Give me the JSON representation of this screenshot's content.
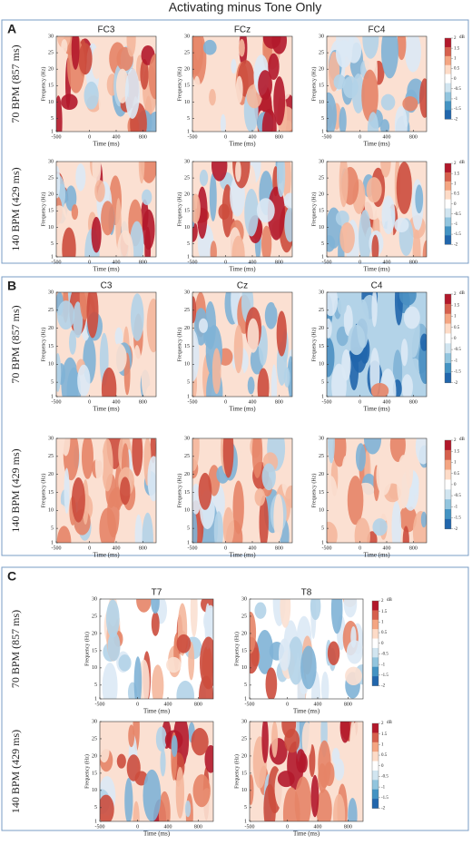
{
  "title": "Activating minus Tone Only",
  "panels": [
    {
      "letter": "A",
      "electrodes": [
        "FC3",
        "FCz",
        "FC4"
      ],
      "rows": [
        "70 BPM (857 ms)",
        "140 BPM (429 ms)"
      ]
    },
    {
      "letter": "B",
      "electrodes": [
        "C3",
        "Cz",
        "C4"
      ],
      "rows": [
        "70 BPM (857 ms)",
        "140 BPM (429 ms)"
      ]
    },
    {
      "letter": "C",
      "electrodes": [
        "T7",
        "T8"
      ],
      "rows": [
        "70 BPM (857 ms)",
        "140 BPM (429 ms)"
      ]
    }
  ],
  "axes": {
    "y_label": "Frequency (Hz)",
    "x_label": "Time (ms)",
    "ylim": [
      1,
      30
    ],
    "yticks": [
      1,
      5,
      10,
      15,
      20,
      25,
      30
    ],
    "xlim": [
      -500,
      1000
    ],
    "xticks": [
      -500,
      0,
      400,
      800
    ],
    "clim": [
      -2,
      2
    ],
    "colorbar_ticks": [
      2,
      1.5,
      1,
      0.5,
      0,
      -0.5,
      -1,
      -1.5,
      -2
    ],
    "colorbar_unit": "dB"
  }
}
